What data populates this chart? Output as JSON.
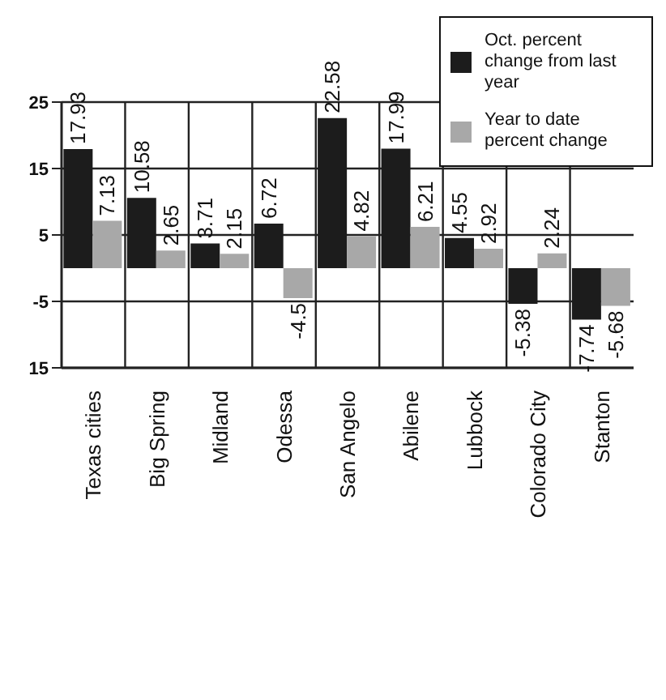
{
  "chart_data": {
    "type": "bar",
    "categories": [
      "Texas cities",
      "Big Spring",
      "Midland",
      "Odessa",
      "San Angelo",
      "Abilene",
      "Lubbock",
      "Colorado City",
      "Stanton"
    ],
    "series": [
      {
        "name": "Oct. percent change from last year",
        "color": "#1c1c1c",
        "values": [
          17.93,
          10.58,
          3.71,
          6.72,
          22.58,
          17.99,
          4.55,
          -5.38,
          -7.74
        ]
      },
      {
        "name": "Year to date percent change",
        "color": "#a8a8a8",
        "values": [
          7.13,
          2.65,
          2.15,
          -4.5,
          4.82,
          6.21,
          2.92,
          2.24,
          -5.68
        ]
      }
    ],
    "ylim": [
      -15,
      25
    ],
    "yticks": [
      25,
      15,
      5,
      -5,
      {
        "value": -15,
        "label": "15"
      }
    ],
    "grid": true,
    "legend": "top right",
    "data_labels": true
  }
}
